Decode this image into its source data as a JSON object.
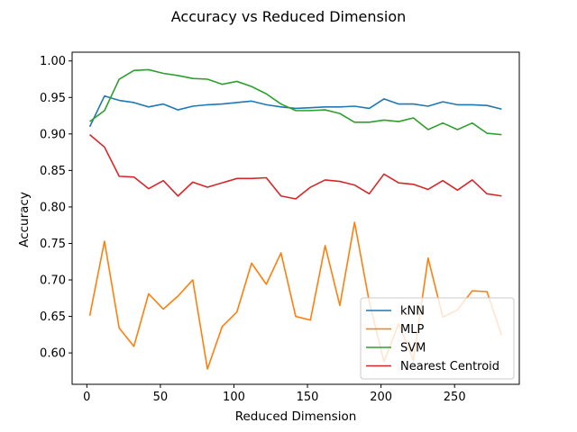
{
  "chart_data": {
    "type": "line",
    "title": "Accuracy vs Reduced Dimension",
    "xlabel": "Reduced Dimension",
    "ylabel": "Accuracy",
    "xlim": [
      -10,
      294
    ],
    "ylim": [
      0.557,
      1.012
    ],
    "xticks": [
      0,
      50,
      100,
      150,
      200,
      250
    ],
    "xtick_labels": [
      "0",
      "50",
      "100",
      "150",
      "200",
      "250"
    ],
    "yticks": [
      0.6,
      0.65,
      0.7,
      0.75,
      0.8,
      0.85,
      0.9,
      0.95,
      1.0
    ],
    "ytick_labels": [
      "0.60",
      "0.65",
      "0.70",
      "0.75",
      "0.80",
      "0.85",
      "0.90",
      "0.95",
      "1.00"
    ],
    "grid": false,
    "legend_position": "lower-right",
    "x": [
      2,
      12,
      22,
      32,
      42,
      52,
      62,
      72,
      82,
      92,
      102,
      112,
      122,
      132,
      142,
      152,
      162,
      172,
      182,
      192,
      202,
      212,
      222,
      232,
      242,
      252,
      262,
      272,
      282
    ],
    "series": [
      {
        "name": "kNN",
        "color": "#1f77b4",
        "values": [
          0.91,
          0.952,
          0.946,
          0.943,
          0.937,
          0.941,
          0.933,
          0.938,
          0.94,
          0.941,
          0.943,
          0.945,
          0.94,
          0.937,
          0.935,
          0.936,
          0.937,
          0.937,
          0.938,
          0.935,
          0.948,
          0.941,
          0.941,
          0.938,
          0.944,
          0.94,
          0.94,
          0.939,
          0.934
        ]
      },
      {
        "name": "MLP",
        "color": "#ff7f0e",
        "values": [
          0.651,
          0.753,
          0.634,
          0.609,
          0.681,
          0.66,
          0.678,
          0.7,
          0.578,
          0.636,
          0.656,
          0.723,
          0.694,
          0.737,
          0.65,
          0.645,
          0.747,
          0.665,
          0.779,
          0.67,
          0.588,
          0.64,
          0.59,
          0.73,
          0.649,
          0.659,
          0.685,
          0.684,
          0.624
        ]
      },
      {
        "name": "SVM",
        "color": "#2ca02c",
        "values": [
          0.917,
          0.932,
          0.975,
          0.987,
          0.988,
          0.983,
          0.98,
          0.976,
          0.975,
          0.968,
          0.972,
          0.965,
          0.955,
          0.941,
          0.932,
          0.932,
          0.933,
          0.928,
          0.916,
          0.916,
          0.919,
          0.917,
          0.922,
          0.906,
          0.915,
          0.906,
          0.915,
          0.901,
          0.899
        ]
      },
      {
        "name": "Nearest Centroid",
        "color": "#d62728",
        "values": [
          0.899,
          0.882,
          0.842,
          0.841,
          0.825,
          0.836,
          0.815,
          0.834,
          0.827,
          0.833,
          0.839,
          0.839,
          0.84,
          0.815,
          0.811,
          0.827,
          0.837,
          0.835,
          0.83,
          0.818,
          0.845,
          0.833,
          0.831,
          0.824,
          0.836,
          0.823,
          0.837,
          0.818,
          0.815
        ]
      }
    ]
  }
}
